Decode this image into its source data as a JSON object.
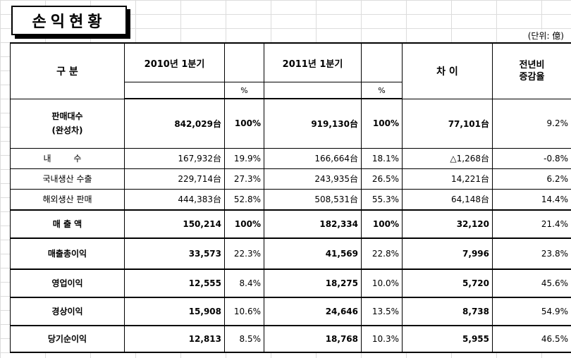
{
  "title": "손익현황",
  "unit": "(단위: 億)",
  "header": {
    "category": "구 분",
    "period_2010": "2010년 1분기",
    "period_2011": "2011년 1분기",
    "pct": "%",
    "diff": "차 이",
    "yoy_line1": "전년비",
    "yoy_line2": "증감율"
  },
  "rows": [
    {
      "label_line1": "판매대수",
      "label_line2": "(완성차)",
      "v2010": "842,029台",
      "p2010": "100%",
      "v2011": "919,130台",
      "p2011": "100%",
      "diff": "77,101台",
      "yoy": "9.2%"
    },
    {
      "label": "내 수",
      "v2010": "167,932台",
      "p2010": "19.9%",
      "v2011": "166,664台",
      "p2011": "18.1%",
      "diff": "△1,268台",
      "yoy": "-0.8%"
    },
    {
      "label": "국내생산 수출",
      "v2010": "229,714台",
      "p2010": "27.3%",
      "v2011": "243,935台",
      "p2011": "26.5%",
      "diff": "14,221台",
      "yoy": "6.2%"
    },
    {
      "label": "해외생산 판매",
      "v2010": "444,383台",
      "p2010": "52.8%",
      "v2011": "508,531台",
      "p2011": "55.3%",
      "diff": "64,148台",
      "yoy": "14.4%"
    },
    {
      "label": "매 출 액",
      "v2010": "150,214",
      "p2010": "100%",
      "v2011": "182,334",
      "p2011": "100%",
      "diff": "32,120",
      "yoy": "21.4%"
    },
    {
      "label": "매출총이익",
      "v2010": "33,573",
      "p2010": "22.3%",
      "v2011": "41,569",
      "p2011": "22.8%",
      "diff": "7,996",
      "yoy": "23.8%"
    },
    {
      "label": "영업이익",
      "v2010": "12,555",
      "p2010": "8.4%",
      "v2011": "18,275",
      "p2011": "10.0%",
      "diff": "5,720",
      "yoy": "45.6%"
    },
    {
      "label": "경상이익",
      "v2010": "15,908",
      "p2010": "10.6%",
      "v2011": "24,646",
      "p2011": "13.5%",
      "diff": "8,738",
      "yoy": "54.9%"
    },
    {
      "label": "당기순이익",
      "v2010": "12,813",
      "p2010": "8.5%",
      "v2011": "18,768",
      "p2011": "10.3%",
      "diff": "5,955",
      "yoy": "46.5%"
    }
  ]
}
